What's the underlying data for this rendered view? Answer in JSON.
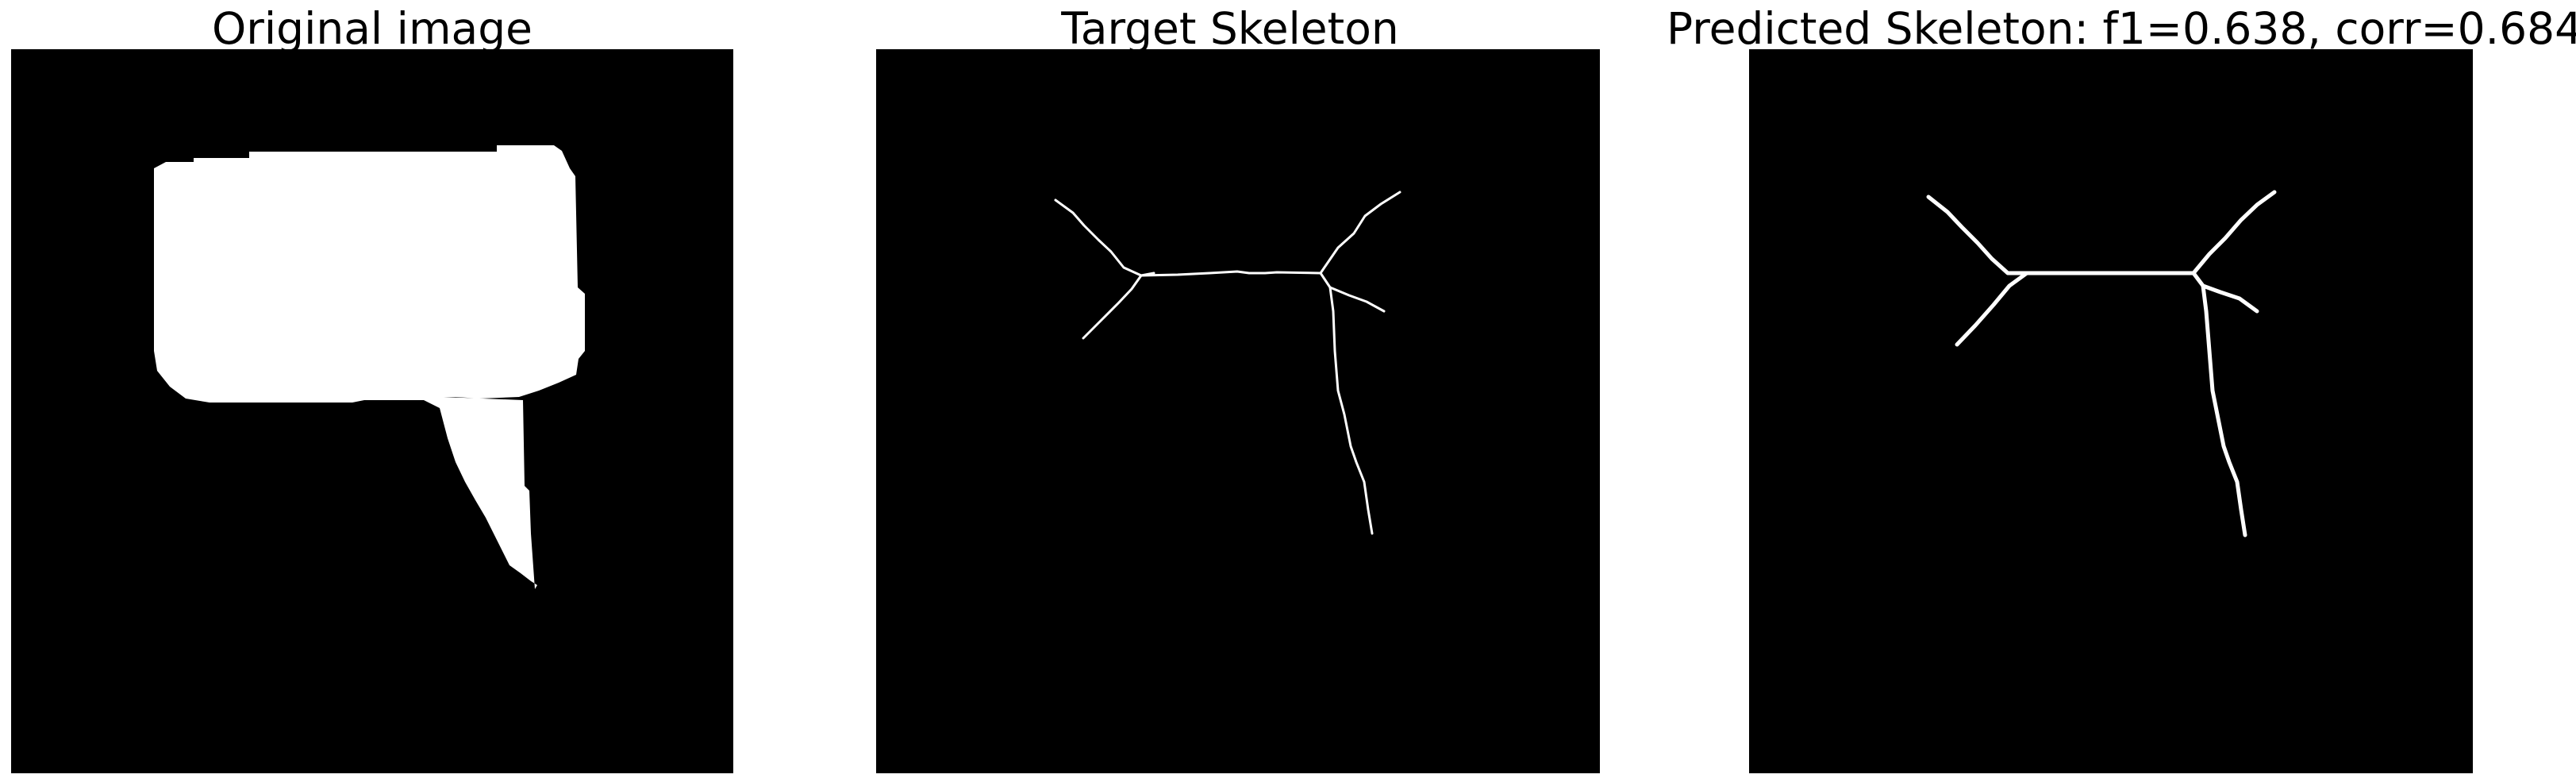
{
  "panels": [
    {
      "title": "Original image",
      "content": "speech-bubble-mask"
    },
    {
      "title": "Target Skeleton",
      "content": "target-skeleton"
    },
    {
      "title": "Predicted Skeleton: f1=0.638, corr=0.684",
      "content": "predicted-skeleton"
    }
  ],
  "colors": {
    "background": "#000000",
    "foreground": "#ffffff"
  }
}
